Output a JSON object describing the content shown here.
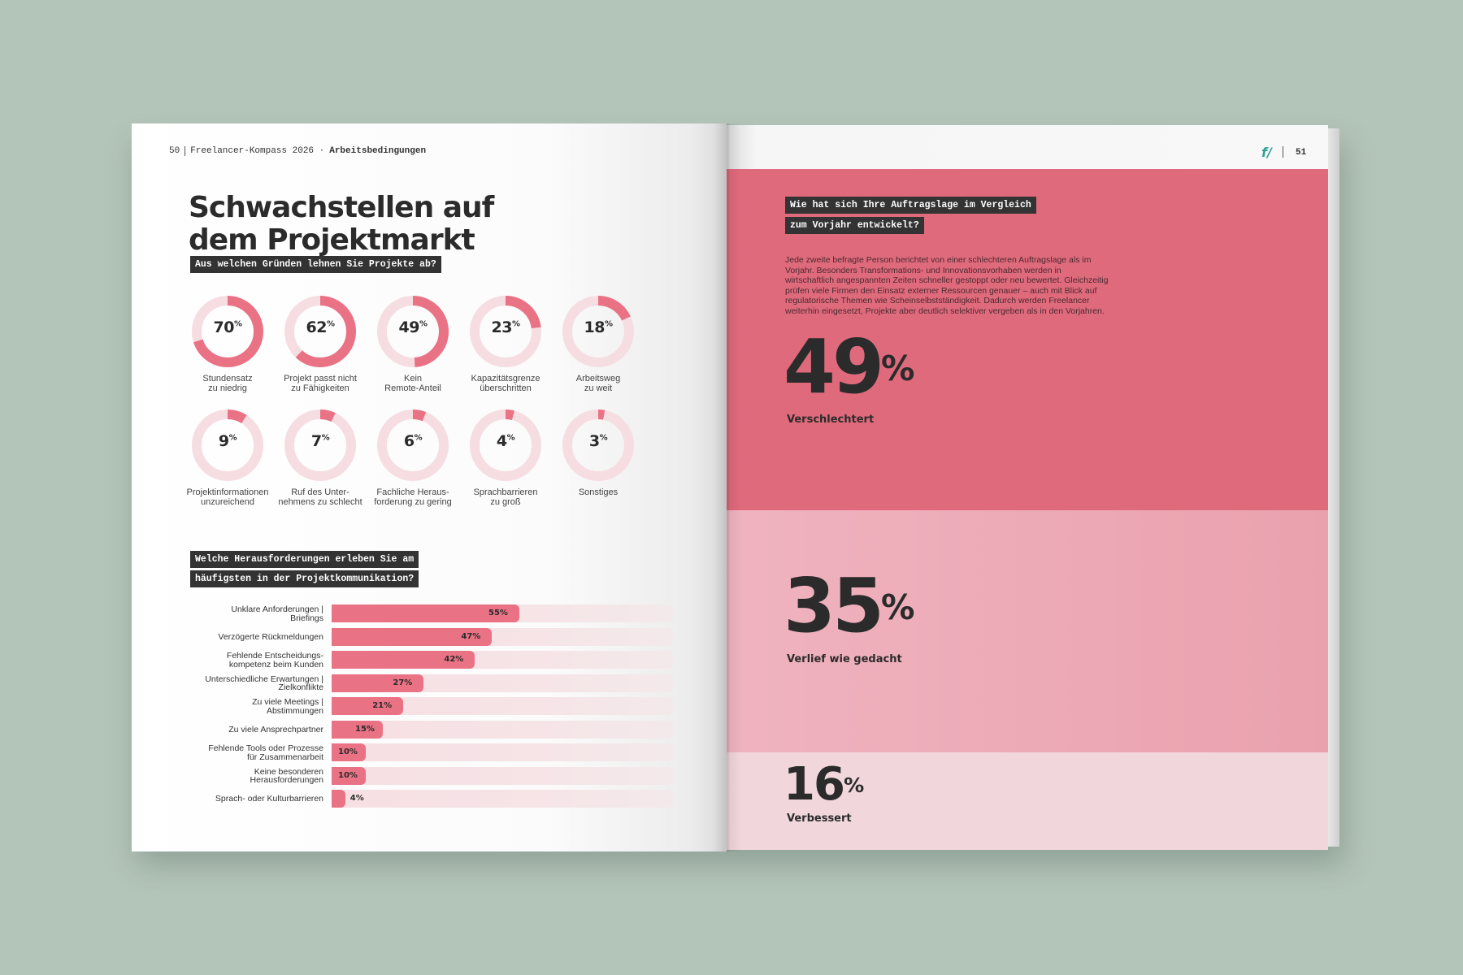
{
  "left_page": {
    "page_number": "50",
    "running_head": "Freelancer-Kompass 2026 ·",
    "running_head_section": "Arbeitsbedingungen",
    "title_line1": "Schwachstellen auf",
    "title_line2": "dem Projektmarkt",
    "question1": "Aus welchen Gründen lehnen Sie Projekte ab?",
    "question2_line1": "Welche Herausforderungen erleben Sie am",
    "question2_line2": "häufigsten in der Projektkommunikation?"
  },
  "chart_data": [
    {
      "type": "pie",
      "title": "Aus welchen Gründen lehnen Sie Projekte ab?",
      "categories": [
        "Stundensatz zu niedrig",
        "Projekt passt nicht zu Fähigkeiten",
        "Kein Remote-Anteil",
        "Kapazitätsgrenze überschritten",
        "Arbeitsweg zu weit",
        "Projektinformationen unzureichend",
        "Ruf des Unternehmens zu schlecht",
        "Fachliche Herausforderung zu gering",
        "Sprachbarrieren zu groß",
        "Sonstiges"
      ],
      "values": [
        70,
        62,
        49,
        23,
        18,
        9,
        7,
        6,
        4,
        3
      ],
      "items": [
        {
          "value": 70,
          "label": "70",
          "line1": "Stundensatz",
          "line2": "zu niedrig"
        },
        {
          "value": 62,
          "label": "62",
          "line1": "Projekt passt nicht",
          "line2": "zu Fähigkeiten"
        },
        {
          "value": 49,
          "label": "49",
          "line1": "Kein",
          "line2": "Remote-Anteil"
        },
        {
          "value": 23,
          "label": "23",
          "line1": "Kapazitätsgrenze",
          "line2": "überschritten"
        },
        {
          "value": 18,
          "label": "18",
          "line1": "Arbeitsweg",
          "line2": "zu weit"
        },
        {
          "value": 9,
          "label": "9",
          "line1": "Projektinformationen",
          "line2": "unzureichend"
        },
        {
          "value": 7,
          "label": "7",
          "line1": "Ruf des Unter-",
          "line2": "nehmens zu schlecht"
        },
        {
          "value": 6,
          "label": "6",
          "line1": "Fachliche Heraus-",
          "line2": "forderung zu gering"
        },
        {
          "value": 4,
          "label": "4",
          "line1": "Sprachbarrieren",
          "line2": "zu groß"
        },
        {
          "value": 3,
          "label": "3",
          "line1": "Sonstiges",
          "line2": ""
        }
      ],
      "unit": "%",
      "colors": {
        "fill": "#ea7285",
        "track": "#f6dde1"
      }
    },
    {
      "type": "bar",
      "title": "Welche Herausforderungen erleben Sie am häufigsten in der Projektkommunikation?",
      "categories": [
        "Unklare Anforderungen | Briefings",
        "Verzögerte Rückmeldungen",
        "Fehlende Entscheidungskompetenz beim Kunden",
        "Unterschiedliche Erwartungen | Zielkonflikte",
        "Zu viele Meetings | Abstimmungen",
        "Zu viele Ansprechpartner",
        "Fehlende Tools oder Prozesse für Zusammenarbeit",
        "Keine besonderen Herausforderungen",
        "Sprach- oder Kulturbarrieren"
      ],
      "values": [
        55,
        47,
        42,
        27,
        21,
        15,
        10,
        10,
        4
      ],
      "items": [
        {
          "value": 55,
          "label": "55%",
          "line1": "Unklare Anforderungen |",
          "line2": "Briefings"
        },
        {
          "value": 47,
          "label": "47%",
          "line1": "Verzögerte Rückmeldungen",
          "line2": ""
        },
        {
          "value": 42,
          "label": "42%",
          "line1": "Fehlende Entscheidungs-",
          "line2": "kompetenz beim Kunden"
        },
        {
          "value": 27,
          "label": "27%",
          "line1": "Unterschiedliche Erwartungen |",
          "line2": "Zielkonflikte"
        },
        {
          "value": 21,
          "label": "21%",
          "line1": "Zu viele Meetings |",
          "line2": "Abstimmungen"
        },
        {
          "value": 15,
          "label": "15%",
          "line1": "Zu viele Ansprechpartner",
          "line2": ""
        },
        {
          "value": 10,
          "label": "10%",
          "line1": "Fehlende Tools oder Prozesse",
          "line2": "für Zusammenarbeit"
        },
        {
          "value": 10,
          "label": "10%",
          "line1": "Keine besonderen",
          "line2": "Herausforderungen"
        },
        {
          "value": 4,
          "label": "4%",
          "line1": "Sprach- oder Kulturbarrieren",
          "line2": ""
        }
      ],
      "ylim": [
        0,
        100
      ],
      "colors": {
        "fill": "#ea7285",
        "track": "#f6e1e5"
      }
    },
    {
      "type": "bar",
      "title": "Wie hat sich Ihre Auftragslage im Vergleich zum Vorjahr entwickelt?",
      "categories": [
        "Verschlechtert",
        "Verlief wie gedacht",
        "Verbessert"
      ],
      "values": [
        49,
        35,
        16
      ]
    }
  ],
  "right_page": {
    "logo": "f/",
    "page_number": "51",
    "question_line1": "Wie hat sich Ihre Auftragslage im Vergleich",
    "question_line2": "zum Vorjahr entwickelt?",
    "body_text": "Jede zweite befragte Person berichtet von einer schlechteren Auftragslage als im Vorjahr. Besonders Transformations- und Innovationsvorhaben werden in wirtschaftlich angespannten Zeiten schneller gestoppt oder neu bewertet. Gleichzeitig prüfen viele Firmen den Einsatz externer Ressourcen genauer – auch mit Blick auf regulatorische Themen wie Scheinselbstständigkeit. Dadurch werden Freelancer weiterhin eingesetzt, Projekte aber deutlich selektiver vergeben als in den Vorjahren.",
    "stats": [
      {
        "value": "49",
        "unit": "%",
        "label": "Verschlechtert",
        "color": "#df6a7c"
      },
      {
        "value": "35",
        "unit": "%",
        "label": "Verlief wie gedacht",
        "color": "#eca7b3"
      },
      {
        "value": "16",
        "unit": "%",
        "label": "Verbessert",
        "color": "#f1d7dc"
      }
    ]
  }
}
